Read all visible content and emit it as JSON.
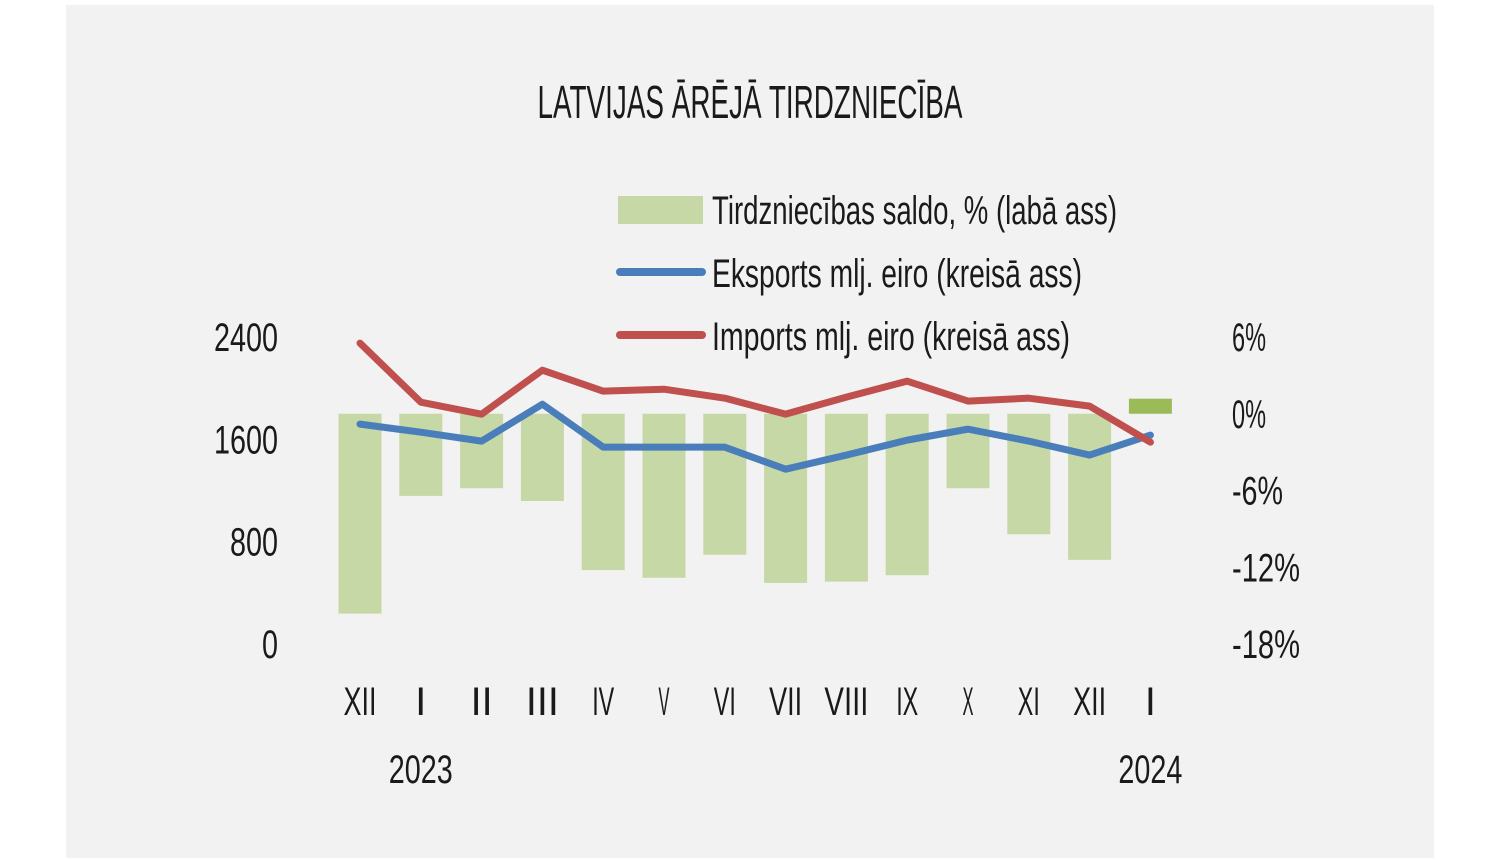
{
  "chart_data": {
    "type": "bar+line",
    "title": "LATVIJAS ĀRĒJĀ TIRDZNIECĪBA",
    "categories": [
      "XII",
      "I",
      "II",
      "III",
      "IV",
      "V",
      "VI",
      "VII",
      "VIII",
      "IX",
      "X",
      "XI",
      "XII",
      "I"
    ],
    "year_labels": [
      {
        "label": "2023",
        "category_index": 1
      },
      {
        "label": "2024",
        "category_index": 13
      }
    ],
    "left_axis": {
      "ticks": [
        "0",
        "800",
        "1600",
        "2400"
      ],
      "range": [
        0,
        2400
      ]
    },
    "right_axis": {
      "ticks": [
        "-18%",
        "-12%",
        "-6%",
        "0%",
        "6%"
      ],
      "range": [
        -18,
        6
      ]
    },
    "legend_position": "top-center",
    "grid": false,
    "series": [
      {
        "name": "Tirdzniecības saldo, % (labā ass)",
        "type": "bar",
        "axis": "right",
        "color": "#c6d8a5",
        "highlight_color": "#9bbb59",
        "values": [
          -15.7,
          -6.5,
          -5.9,
          -6.9,
          -12.3,
          -12.9,
          -11.1,
          -13.3,
          -13.2,
          -12.7,
          -5.9,
          -9.5,
          -11.5,
          1.1
        ]
      },
      {
        "name": "Eksports mlj. eiro (kreisā ass)",
        "type": "line",
        "axis": "left",
        "color": "#4a7ebb",
        "values": [
          1711,
          1648,
          1578,
          1867,
          1531,
          1531,
          1531,
          1359,
          1469,
          1586,
          1672,
          1578,
          1469,
          1625
        ]
      },
      {
        "name": "Imports mlj. eiro (kreisā ass)",
        "type": "line",
        "axis": "left",
        "color": "#c0504d",
        "values": [
          2344,
          1883,
          1789,
          2133,
          1969,
          1984,
          1914,
          1789,
          1922,
          2047,
          1891,
          1914,
          1852,
          1570
        ]
      }
    ]
  }
}
